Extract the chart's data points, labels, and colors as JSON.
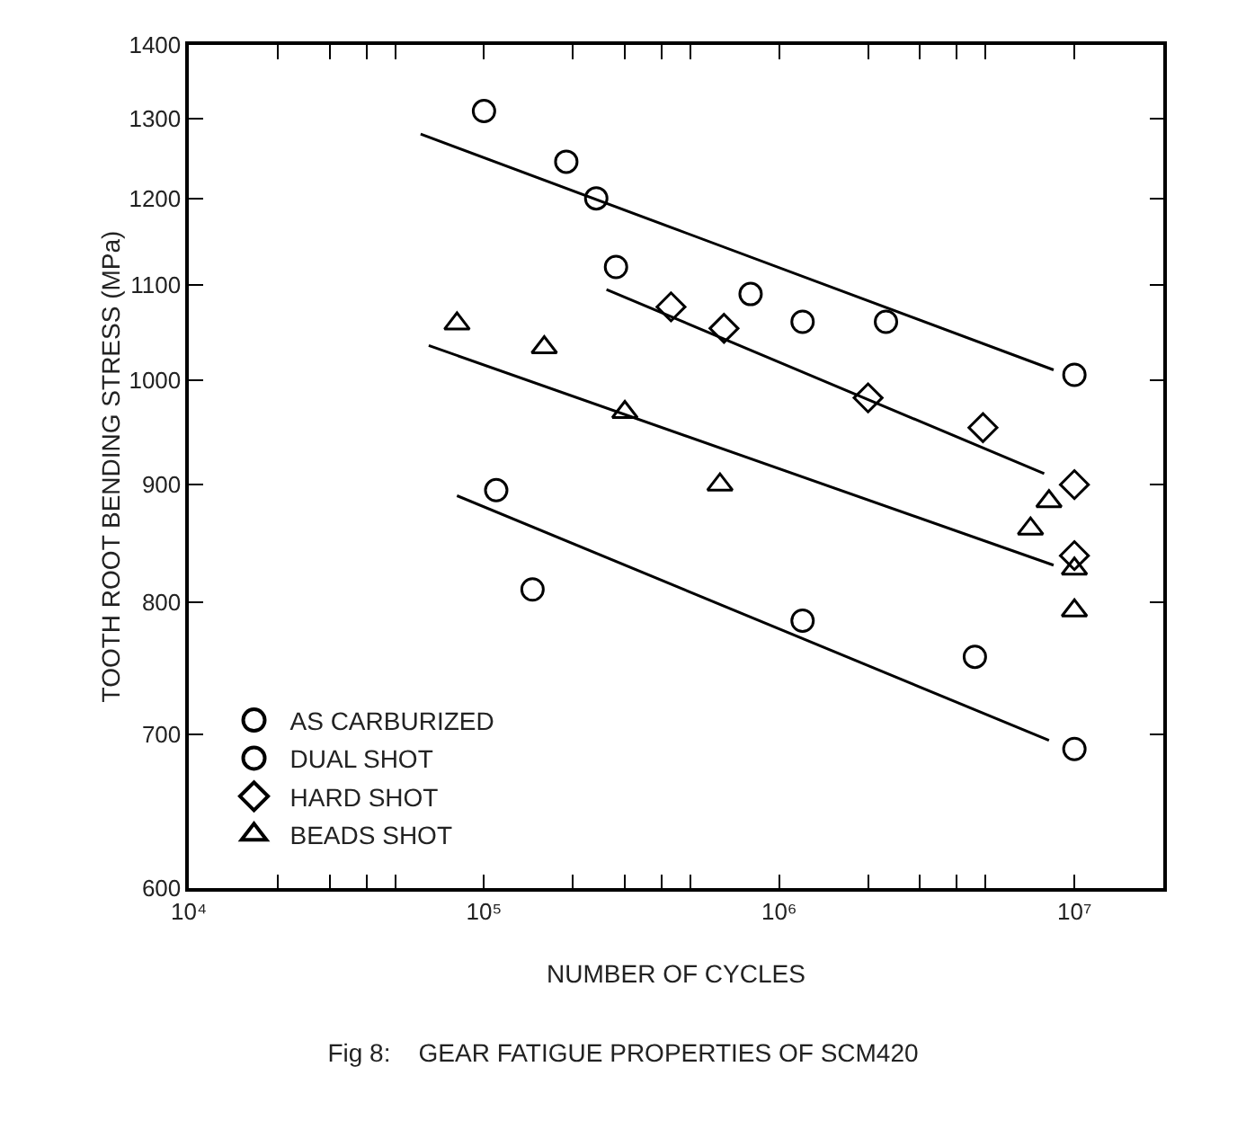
{
  "chart_data": {
    "type": "scatter",
    "title": "Fig 8:    GEAR FATIGUE PROPERTIES OF SCM420",
    "xlabel": "NUMBER OF CYCLES",
    "ylabel": "TOOTH ROOT BENDING STRESS (MPa)",
    "log": "xy",
    "grid": false,
    "legend": "bottom left",
    "xlim": [
      10000,
      20000000
    ],
    "ylim": [
      600,
      1400
    ],
    "xticks": [
      {
        "value": 10000,
        "label": "10⁴"
      },
      {
        "value": 20000,
        "label": null
      },
      {
        "value": 30000,
        "label": null
      },
      {
        "value": 40000,
        "label": null
      },
      {
        "value": 50000,
        "label": null
      },
      {
        "value": 100000,
        "label": "10⁵"
      },
      {
        "value": 200000,
        "label": null
      },
      {
        "value": 300000,
        "label": null
      },
      {
        "value": 400000,
        "label": null
      },
      {
        "value": 500000,
        "label": null
      },
      {
        "value": 1000000,
        "label": "10⁶"
      },
      {
        "value": 2000000,
        "label": null
      },
      {
        "value": 3000000,
        "label": null
      },
      {
        "value": 4000000,
        "label": null
      },
      {
        "value": 5000000,
        "label": null
      },
      {
        "value": 10000000,
        "label": "10⁷"
      }
    ],
    "yticks": [
      600,
      700,
      800,
      900,
      1000,
      1100,
      1200,
      1300,
      1400
    ],
    "series": [
      {
        "name": "AS CARBURIZED",
        "marker": "circle",
        "color": "#000000",
        "x": [
          110000,
          146000,
          1200000,
          4600000,
          10000000
        ],
        "values": [
          895,
          810,
          785,
          757,
          690
        ]
      },
      {
        "name": "DUAL SHOT",
        "marker": "circle",
        "color": "#000000",
        "x": [
          100000,
          190000,
          240000,
          280000,
          800000,
          1200000,
          2300000,
          10000000
        ],
        "values": [
          1310,
          1245,
          1200,
          1120,
          1090,
          1060,
          1060,
          1005
        ]
      },
      {
        "name": "HARD SHOT",
        "marker": "diamond",
        "color": "#000000",
        "x": [
          430000,
          650000,
          2000000,
          4900000,
          10000000,
          10000000
        ],
        "values": [
          1076,
          1053,
          982,
          953,
          900,
          838
        ]
      },
      {
        "name": "BEADS SHOT",
        "marker": "triangle",
        "color": "#000000",
        "x": [
          81000,
          160000,
          300000,
          630000,
          7100000,
          8200000,
          10000000,
          10000000
        ],
        "values": [
          1058,
          1033,
          968,
          900,
          861,
          885,
          827,
          793
        ]
      },
      {
        "type": "line",
        "line_style": "solid",
        "color": "#000000",
        "x": [
          61000,
          8500000
        ],
        "values": [
          1280,
          1010
        ]
      },
      {
        "type": "line",
        "line_style": "solid",
        "color": "#000000",
        "x": [
          260000,
          7900000
        ],
        "values": [
          1095,
          910
        ]
      },
      {
        "type": "line",
        "line_style": "solid",
        "color": "#000000",
        "x": [
          65000,
          8500000
        ],
        "values": [
          1035,
          830
        ]
      },
      {
        "type": "line",
        "line_style": "solid",
        "color": "#000000",
        "x": [
          81000,
          8200000
        ],
        "values": [
          890,
          696
        ]
      }
    ]
  }
}
